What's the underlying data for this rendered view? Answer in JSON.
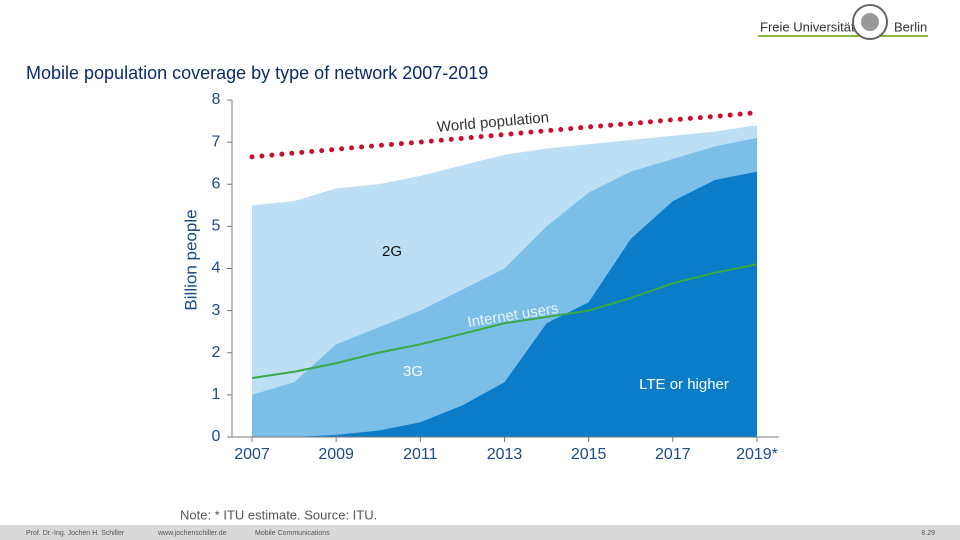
{
  "header": {
    "logo_left": "Freie Universität",
    "logo_right": "Berlin"
  },
  "chart_data": {
    "type": "area",
    "title": "Mobile population coverage by type of network 2007-2019",
    "y_label": "Billion people",
    "x": [
      2007,
      2008,
      2009,
      2010,
      2011,
      2012,
      2013,
      2014,
      2015,
      2016,
      2017,
      2018,
      2019
    ],
    "xlim": [
      2007,
      2019
    ],
    "xticks": [
      2007,
      2009,
      2011,
      2013,
      2015,
      2017,
      {
        "value": 2019,
        "label": "2019*"
      }
    ],
    "ylim": [
      0,
      8
    ],
    "yticks": [
      0,
      1,
      2,
      3,
      4,
      5,
      6,
      7,
      8
    ],
    "series": [
      {
        "name": "2G",
        "kind": "area",
        "color": "#bcdff5",
        "values": [
          5.5,
          5.6,
          5.9,
          6.0,
          6.2,
          6.45,
          6.7,
          6.85,
          6.95,
          7.05,
          7.15,
          7.25,
          7.4
        ]
      },
      {
        "name": "3G",
        "kind": "area",
        "color": "#7bbfe8",
        "values": [
          1.0,
          1.3,
          2.2,
          2.6,
          3.0,
          3.5,
          4.0,
          5.0,
          5.8,
          6.3,
          6.6,
          6.9,
          7.1
        ]
      },
      {
        "name": "LTE or higher",
        "kind": "area",
        "color": "#0a7cc8",
        "values": [
          0,
          0,
          0.05,
          0.15,
          0.35,
          0.75,
          1.3,
          2.7,
          3.2,
          4.7,
          5.6,
          6.1,
          6.3
        ]
      },
      {
        "name": "World population",
        "kind": "line",
        "style": "dotted",
        "color": "#c8102e",
        "values": [
          6.65,
          6.74,
          6.83,
          6.92,
          7.0,
          7.09,
          7.18,
          7.27,
          7.36,
          7.44,
          7.53,
          7.61,
          7.7
        ]
      },
      {
        "name": "Internet users",
        "kind": "line",
        "style": "solid",
        "color": "#3aa846",
        "values": [
          1.4,
          1.55,
          1.75,
          2.0,
          2.2,
          2.45,
          2.7,
          2.85,
          3.0,
          3.3,
          3.65,
          3.9,
          4.1
        ]
      }
    ]
  },
  "note": "Note: * ITU estimate.    Source: ITU.",
  "footer": {
    "author": "Prof. Dr.-Ing. Jochen H. Schiller",
    "url": "www.jochenschiller.de",
    "course": "Mobile Communications",
    "page": "8.29"
  }
}
